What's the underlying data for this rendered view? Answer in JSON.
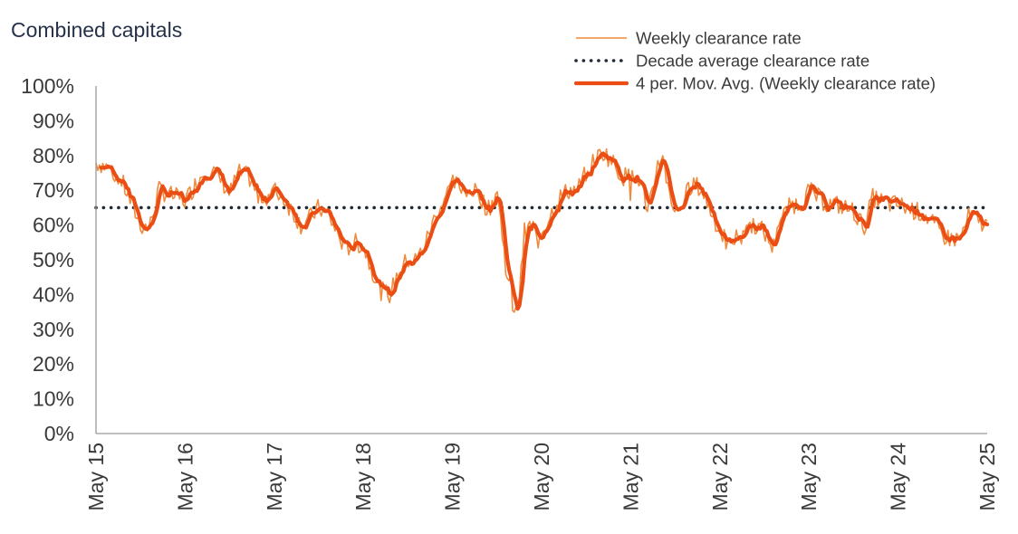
{
  "chart_data": {
    "type": "line",
    "title": "Combined capitals",
    "xlabel": "",
    "ylabel": "",
    "ylim": [
      0,
      100
    ],
    "y_ticks": [
      "0%",
      "10%",
      "20%",
      "30%",
      "40%",
      "50%",
      "60%",
      "70%",
      "80%",
      "90%",
      "100%"
    ],
    "x_ticks": [
      "May 15",
      "May 16",
      "May 17",
      "May 18",
      "May 19",
      "May 20",
      "May 21",
      "May 22",
      "May 23",
      "May 24",
      "May 25"
    ],
    "xlim": [
      2015.0,
      2025.0
    ],
    "legend": [
      {
        "label": "Weekly clearance rate",
        "style": "thin"
      },
      {
        "label": "Decade average clearance rate",
        "style": "dotted"
      },
      {
        "label": "4 per. Mov. Avg. (Weekly clearance rate)",
        "style": "thick"
      }
    ],
    "legend_position": "top-right",
    "decade_average": 65,
    "colors": {
      "weekly": "#f08a3c",
      "average": "#1f2a36",
      "moving_avg": "#ea4e14",
      "axis": "#9a9a9a"
    },
    "series_anchor_points": {
      "x": [
        2015.0,
        2015.1,
        2015.2,
        2015.3,
        2015.4,
        2015.5,
        2015.6,
        2015.7,
        2015.8,
        2015.9,
        2016.0,
        2016.1,
        2016.2,
        2016.3,
        2016.4,
        2016.5,
        2016.6,
        2016.7,
        2016.8,
        2016.9,
        2017.0,
        2017.1,
        2017.2,
        2017.3,
        2017.4,
        2017.5,
        2017.6,
        2017.7,
        2017.8,
        2017.9,
        2018.0,
        2018.1,
        2018.2,
        2018.3,
        2018.4,
        2018.5,
        2018.6,
        2018.7,
        2018.8,
        2018.9,
        2019.0,
        2019.1,
        2019.2,
        2019.3,
        2019.4,
        2019.5,
        2019.6,
        2019.7,
        2019.75,
        2019.8,
        2019.85,
        2019.9,
        2019.95,
        2020.0,
        2020.1,
        2020.2,
        2020.3,
        2020.4,
        2020.5,
        2020.6,
        2020.7,
        2020.8,
        2020.9,
        2021.0,
        2021.1,
        2021.2,
        2021.25,
        2021.3,
        2021.35,
        2021.4,
        2021.5,
        2021.6,
        2021.7,
        2021.8,
        2021.9,
        2022.0,
        2022.1,
        2022.2,
        2022.3,
        2022.4,
        2022.5,
        2022.6,
        2022.65,
        2022.7,
        2022.8,
        2022.9,
        2023.0,
        2023.1,
        2023.2,
        2023.3,
        2023.4,
        2023.5,
        2023.6,
        2023.65,
        2023.7,
        2023.8,
        2023.9,
        2024.0,
        2024.1,
        2024.2,
        2024.3,
        2024.4,
        2024.5,
        2024.6,
        2024.7,
        2024.8,
        2024.9,
        2025.0
      ],
      "y": [
        78,
        77,
        75,
        72,
        66,
        60,
        59,
        70,
        69,
        68,
        67,
        71,
        75,
        76,
        73,
        69,
        75,
        74,
        69,
        68,
        70,
        68,
        64,
        60,
        62,
        65,
        63,
        58,
        53,
        55,
        54,
        47,
        41,
        40,
        47,
        50,
        50,
        55,
        62,
        67,
        72,
        71,
        70,
        69,
        64,
        70,
        48,
        33,
        40,
        55,
        59,
        60,
        56,
        58,
        63,
        68,
        70,
        70,
        75,
        79,
        81,
        78,
        74,
        74,
        73,
        64,
        70,
        78,
        80,
        74,
        63,
        68,
        72,
        70,
        64,
        58,
        54,
        57,
        60,
        60,
        58,
        53,
        61,
        62,
        66,
        66,
        70,
        68,
        66,
        66,
        65,
        64,
        60,
        60,
        68,
        67,
        66,
        66,
        65,
        64,
        63,
        60,
        57,
        56,
        56,
        63,
        61,
        60
      ]
    }
  }
}
